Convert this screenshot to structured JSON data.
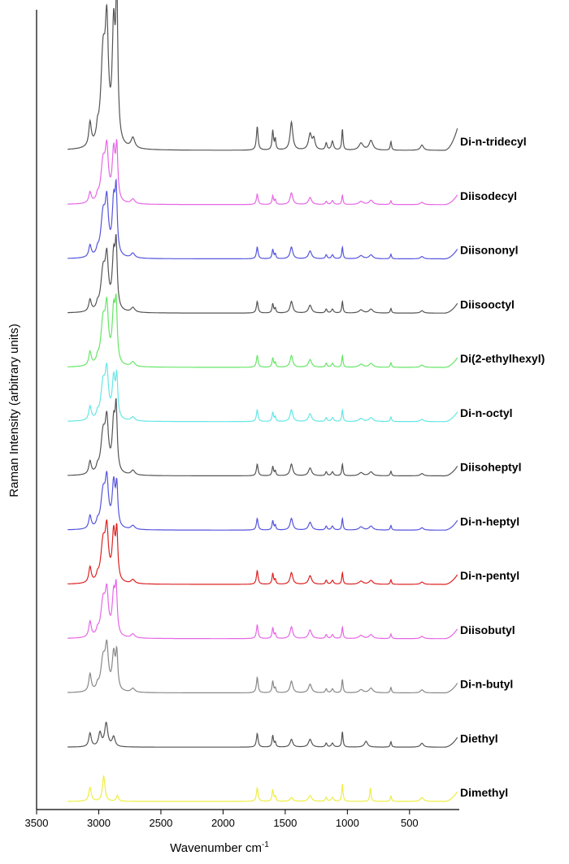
{
  "chart_data": {
    "type": "line",
    "title": "",
    "xlabel": "Wavenumber cm",
    "xlabel_sup": "-1",
    "ylabel": "Raman Intensity (arbitrary units)",
    "xlim": [
      3500,
      100
    ],
    "x_reversed": true,
    "x_ticks": [
      3500,
      3000,
      2500,
      2000,
      1500,
      1000,
      500
    ],
    "grid": false,
    "legend": "none (labels beside each trace)",
    "y_ticks": "none",
    "series": [
      {
        "name": "Di-n-tridecyl",
        "color": "#555555",
        "offset": 12,
        "peaks": [
          [
            3070,
            0.27,
            12
          ],
          [
            3010,
            0.12,
            10
          ],
          [
            2965,
            1.0,
            22
          ],
          [
            2935,
            1.2,
            15
          ],
          [
            2880,
            1.25,
            14
          ],
          [
            2855,
            1.6,
            10
          ],
          [
            2725,
            0.12,
            18
          ],
          [
            1725,
            0.27,
            8
          ],
          [
            1600,
            0.22,
            7
          ],
          [
            1580,
            0.12,
            6
          ],
          [
            1450,
            0.32,
            13
          ],
          [
            1300,
            0.18,
            15
          ],
          [
            1270,
            0.12,
            12
          ],
          [
            1170,
            0.08,
            8
          ],
          [
            1120,
            0.1,
            10
          ],
          [
            1040,
            0.24,
            6
          ],
          [
            890,
            0.08,
            20
          ],
          [
            810,
            0.11,
            18
          ],
          [
            650,
            0.1,
            6
          ],
          [
            400,
            0.06,
            15
          ]
        ]
      },
      {
        "name": "Diisodecyl",
        "color": "#e667e6",
        "offset": 11,
        "peaks": [
          [
            3070,
            0.27,
            12
          ],
          [
            3010,
            0.12,
            10
          ],
          [
            2965,
            1.0,
            22
          ],
          [
            2935,
            1.2,
            15
          ],
          [
            2880,
            1.25,
            14
          ],
          [
            2855,
            1.3,
            10
          ],
          [
            2725,
            0.12,
            18
          ],
          [
            1725,
            0.27,
            8
          ],
          [
            1600,
            0.22,
            7
          ],
          [
            1580,
            0.12,
            6
          ],
          [
            1450,
            0.3,
            13
          ],
          [
            1300,
            0.18,
            15
          ],
          [
            1170,
            0.08,
            8
          ],
          [
            1120,
            0.1,
            10
          ],
          [
            1040,
            0.24,
            6
          ],
          [
            890,
            0.08,
            20
          ],
          [
            810,
            0.11,
            18
          ],
          [
            650,
            0.1,
            6
          ],
          [
            400,
            0.06,
            15
          ]
        ]
      },
      {
        "name": "Diisononyl",
        "color": "#5555dd",
        "offset": 10,
        "peaks": [
          [
            3070,
            0.3,
            12
          ],
          [
            3010,
            0.12,
            10
          ],
          [
            2965,
            1.05,
            22
          ],
          [
            2935,
            1.25,
            15
          ],
          [
            2880,
            1.3,
            14
          ],
          [
            2860,
            1.5,
            10
          ],
          [
            2725,
            0.12,
            18
          ],
          [
            1725,
            0.3,
            8
          ],
          [
            1600,
            0.24,
            7
          ],
          [
            1580,
            0.12,
            6
          ],
          [
            1450,
            0.3,
            13
          ],
          [
            1300,
            0.2,
            15
          ],
          [
            1170,
            0.1,
            8
          ],
          [
            1120,
            0.1,
            10
          ],
          [
            1040,
            0.3,
            6
          ],
          [
            890,
            0.08,
            20
          ],
          [
            810,
            0.1,
            18
          ],
          [
            650,
            0.12,
            6
          ],
          [
            400,
            0.06,
            15
          ]
        ]
      },
      {
        "name": "Diisooctyl",
        "color": "#555555",
        "offset": 9,
        "peaks": [
          [
            3070,
            0.3,
            12
          ],
          [
            3010,
            0.12,
            10
          ],
          [
            2965,
            1.0,
            22
          ],
          [
            2935,
            1.2,
            15
          ],
          [
            2880,
            1.3,
            14
          ],
          [
            2860,
            1.5,
            10
          ],
          [
            2725,
            0.12,
            18
          ],
          [
            1725,
            0.3,
            8
          ],
          [
            1600,
            0.24,
            7
          ],
          [
            1580,
            0.12,
            6
          ],
          [
            1450,
            0.3,
            13
          ],
          [
            1300,
            0.2,
            15
          ],
          [
            1170,
            0.1,
            8
          ],
          [
            1120,
            0.1,
            10
          ],
          [
            1040,
            0.3,
            6
          ],
          [
            890,
            0.08,
            20
          ],
          [
            810,
            0.1,
            18
          ],
          [
            650,
            0.12,
            6
          ],
          [
            400,
            0.06,
            15
          ]
        ]
      },
      {
        "name": "Di(2-ethylhexyl)",
        "color": "#66e666",
        "offset": 8,
        "peaks": [
          [
            3070,
            0.35,
            12
          ],
          [
            3010,
            0.12,
            10
          ],
          [
            2965,
            1.1,
            22
          ],
          [
            2935,
            1.3,
            15
          ],
          [
            2880,
            1.3,
            14
          ],
          [
            2860,
            1.35,
            10
          ],
          [
            2725,
            0.12,
            18
          ],
          [
            1725,
            0.3,
            8
          ],
          [
            1600,
            0.24,
            7
          ],
          [
            1580,
            0.12,
            6
          ],
          [
            1450,
            0.3,
            13
          ],
          [
            1300,
            0.2,
            15
          ],
          [
            1170,
            0.1,
            8
          ],
          [
            1120,
            0.1,
            10
          ],
          [
            1040,
            0.3,
            6
          ],
          [
            890,
            0.08,
            20
          ],
          [
            810,
            0.1,
            18
          ],
          [
            650,
            0.12,
            6
          ],
          [
            400,
            0.06,
            15
          ]
        ]
      },
      {
        "name": "Di-n-octyl",
        "color": "#66e6e6",
        "offset": 7,
        "peaks": [
          [
            3070,
            0.35,
            12
          ],
          [
            3010,
            0.12,
            10
          ],
          [
            2965,
            0.9,
            22
          ],
          [
            2935,
            1.1,
            15
          ],
          [
            2880,
            1.0,
            14
          ],
          [
            2855,
            1.0,
            10
          ],
          [
            2725,
            0.1,
            18
          ],
          [
            1725,
            0.3,
            8
          ],
          [
            1600,
            0.24,
            7
          ],
          [
            1580,
            0.12,
            6
          ],
          [
            1450,
            0.3,
            13
          ],
          [
            1300,
            0.2,
            15
          ],
          [
            1170,
            0.1,
            8
          ],
          [
            1120,
            0.1,
            10
          ],
          [
            1040,
            0.3,
            6
          ],
          [
            890,
            0.08,
            20
          ],
          [
            810,
            0.1,
            18
          ],
          [
            650,
            0.12,
            6
          ],
          [
            400,
            0.06,
            15
          ]
        ]
      },
      {
        "name": "Diisoheptyl",
        "color": "#555555",
        "offset": 6,
        "peaks": [
          [
            3070,
            0.33,
            12
          ],
          [
            3010,
            0.12,
            10
          ],
          [
            2965,
            1.0,
            22
          ],
          [
            2935,
            1.2,
            15
          ],
          [
            2880,
            1.2,
            14
          ],
          [
            2860,
            1.5,
            10
          ],
          [
            2725,
            0.12,
            18
          ],
          [
            1725,
            0.3,
            8
          ],
          [
            1600,
            0.24,
            7
          ],
          [
            1580,
            0.12,
            6
          ],
          [
            1450,
            0.3,
            13
          ],
          [
            1300,
            0.2,
            15
          ],
          [
            1170,
            0.1,
            8
          ],
          [
            1120,
            0.1,
            10
          ],
          [
            1040,
            0.3,
            6
          ],
          [
            890,
            0.08,
            20
          ],
          [
            810,
            0.1,
            18
          ],
          [
            650,
            0.12,
            6
          ],
          [
            400,
            0.06,
            15
          ]
        ]
      },
      {
        "name": "Di-n-heptyl",
        "color": "#5555dd",
        "offset": 5,
        "peaks": [
          [
            3070,
            0.33,
            12
          ],
          [
            3010,
            0.12,
            10
          ],
          [
            2965,
            0.9,
            22
          ],
          [
            2935,
            1.1,
            15
          ],
          [
            2880,
            1.1,
            14
          ],
          [
            2855,
            1.0,
            10
          ],
          [
            2725,
            0.1,
            18
          ],
          [
            1725,
            0.3,
            8
          ],
          [
            1600,
            0.24,
            7
          ],
          [
            1580,
            0.12,
            6
          ],
          [
            1450,
            0.3,
            13
          ],
          [
            1300,
            0.2,
            15
          ],
          [
            1170,
            0.1,
            8
          ],
          [
            1120,
            0.1,
            10
          ],
          [
            1040,
            0.3,
            6
          ],
          [
            890,
            0.08,
            20
          ],
          [
            810,
            0.1,
            18
          ],
          [
            650,
            0.12,
            6
          ],
          [
            400,
            0.06,
            15
          ]
        ]
      },
      {
        "name": "Di-n-pentyl",
        "color": "#dd2222",
        "offset": 4,
        "peaks": [
          [
            3070,
            0.4,
            12
          ],
          [
            3010,
            0.12,
            10
          ],
          [
            2965,
            1.0,
            22
          ],
          [
            2935,
            1.2,
            15
          ],
          [
            2880,
            1.2,
            14
          ],
          [
            2855,
            1.2,
            10
          ],
          [
            2725,
            0.1,
            18
          ],
          [
            1725,
            0.35,
            8
          ],
          [
            1600,
            0.28,
            7
          ],
          [
            1580,
            0.12,
            6
          ],
          [
            1450,
            0.3,
            13
          ],
          [
            1300,
            0.22,
            15
          ],
          [
            1170,
            0.1,
            8
          ],
          [
            1120,
            0.1,
            10
          ],
          [
            1040,
            0.3,
            6
          ],
          [
            890,
            0.08,
            20
          ],
          [
            810,
            0.1,
            18
          ],
          [
            650,
            0.12,
            6
          ],
          [
            400,
            0.06,
            15
          ]
        ]
      },
      {
        "name": "Diisobutyl",
        "color": "#e667e6",
        "offset": 3,
        "peaks": [
          [
            3070,
            0.4,
            12
          ],
          [
            3010,
            0.12,
            10
          ],
          [
            2965,
            0.9,
            22
          ],
          [
            2935,
            1.0,
            15
          ],
          [
            2880,
            1.0,
            14
          ],
          [
            2860,
            1.1,
            10
          ],
          [
            2725,
            0.1,
            18
          ],
          [
            1725,
            0.35,
            8
          ],
          [
            1600,
            0.28,
            7
          ],
          [
            1580,
            0.12,
            6
          ],
          [
            1450,
            0.3,
            13
          ],
          [
            1300,
            0.22,
            15
          ],
          [
            1170,
            0.1,
            8
          ],
          [
            1120,
            0.1,
            10
          ],
          [
            1040,
            0.3,
            6
          ],
          [
            890,
            0.08,
            20
          ],
          [
            810,
            0.1,
            18
          ],
          [
            650,
            0.12,
            6
          ],
          [
            400,
            0.06,
            15
          ]
        ]
      },
      {
        "name": "Di-n-butyl",
        "color": "#888888",
        "offset": 2,
        "peaks": [
          [
            3070,
            0.45,
            12
          ],
          [
            3010,
            0.12,
            10
          ],
          [
            2965,
            0.8,
            22
          ],
          [
            2935,
            1.0,
            15
          ],
          [
            2880,
            0.9,
            14
          ],
          [
            2855,
            0.9,
            10
          ],
          [
            2725,
            0.1,
            18
          ],
          [
            1725,
            0.4,
            8
          ],
          [
            1600,
            0.3,
            7
          ],
          [
            1580,
            0.12,
            6
          ],
          [
            1450,
            0.3,
            13
          ],
          [
            1300,
            0.22,
            15
          ],
          [
            1170,
            0.1,
            8
          ],
          [
            1120,
            0.1,
            10
          ],
          [
            1040,
            0.35,
            6
          ],
          [
            890,
            0.08,
            20
          ],
          [
            810,
            0.12,
            18
          ],
          [
            650,
            0.14,
            6
          ],
          [
            400,
            0.08,
            15
          ]
        ]
      },
      {
        "name": "Diethyl",
        "color": "#555555",
        "offset": 1,
        "peaks": [
          [
            3070,
            0.35,
            12
          ],
          [
            2990,
            0.35,
            14
          ],
          [
            2940,
            0.6,
            15
          ],
          [
            2880,
            0.25,
            14
          ],
          [
            1725,
            0.35,
            8
          ],
          [
            1600,
            0.3,
            7
          ],
          [
            1580,
            0.12,
            6
          ],
          [
            1450,
            0.2,
            13
          ],
          [
            1300,
            0.2,
            15
          ],
          [
            1170,
            0.1,
            8
          ],
          [
            1120,
            0.1,
            10
          ],
          [
            1040,
            0.4,
            6
          ],
          [
            850,
            0.15,
            15
          ],
          [
            650,
            0.14,
            6
          ],
          [
            400,
            0.1,
            15
          ]
        ]
      },
      {
        "name": "Dimethyl",
        "color": "#eeee44",
        "offset": 0,
        "peaks": [
          [
            3070,
            0.35,
            12
          ],
          [
            2960,
            0.65,
            12
          ],
          [
            2850,
            0.15,
            10
          ],
          [
            1725,
            0.35,
            8
          ],
          [
            1600,
            0.3,
            7
          ],
          [
            1580,
            0.12,
            6
          ],
          [
            1450,
            0.1,
            13
          ],
          [
            1300,
            0.15,
            15
          ],
          [
            1170,
            0.1,
            8
          ],
          [
            1120,
            0.1,
            10
          ],
          [
            1040,
            0.45,
            6
          ],
          [
            815,
            0.35,
            6
          ],
          [
            650,
            0.14,
            6
          ],
          [
            400,
            0.1,
            15
          ]
        ]
      }
    ]
  }
}
